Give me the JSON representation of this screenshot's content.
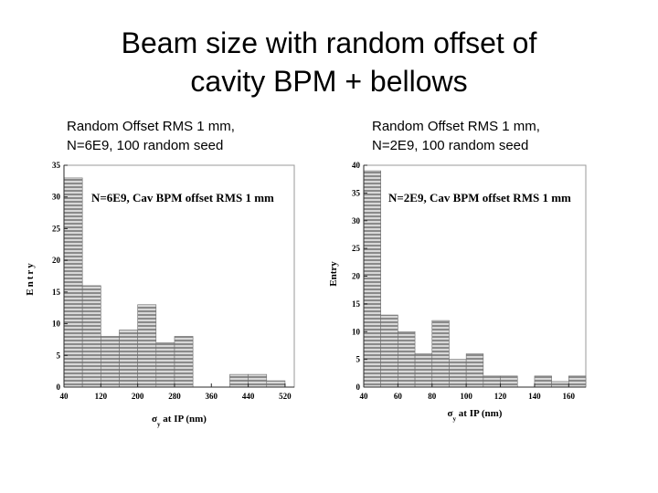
{
  "slide": {
    "title_line1": "Beam size with random offset of",
    "title_line2": "cavity BPM + bellows"
  },
  "captions": {
    "left_line1": "Random Offset RMS 1 mm,",
    "left_line2": "N=6E9, 100 random seed",
    "right_line1": "Random Offset RMS 1 mm,",
    "right_line2": "N=2E9, 100 random seed"
  },
  "colors": {
    "bar_stripe_dark": "#8a8a8a",
    "bar_stripe_light": "#d8d8d8",
    "frame": "#2a2a2a"
  },
  "chart_data": [
    {
      "type": "bar",
      "title": "N=6E9, Cav BPM offset RMS 1 mm",
      "xlabel": "σ",
      "xlabel_sub": "y",
      "xlabel_rest": " at IP (nm)",
      "ylabel": "Entry",
      "xlim": [
        40,
        540
      ],
      "ylim": [
        0,
        35
      ],
      "xticks": [
        40,
        120,
        200,
        280,
        360,
        440,
        520
      ],
      "yticks": [
        0,
        5,
        10,
        15,
        20,
        25,
        30,
        35
      ],
      "bin_edges": [
        40,
        80,
        120,
        160,
        200,
        240,
        280,
        320,
        360,
        400,
        440,
        480,
        520
      ],
      "values": [
        33,
        16,
        8,
        9,
        13,
        7,
        8,
        0,
        0,
        2,
        2,
        1
      ]
    },
    {
      "type": "bar",
      "title": "N=2E9, Cav BPM offset RMS 1 mm",
      "xlabel": "σ",
      "xlabel_sub": "y",
      "xlabel_rest": " at IP (nm)",
      "ylabel": "Entry",
      "xlim": [
        40,
        170
      ],
      "ylim": [
        0,
        40
      ],
      "xticks": [
        40,
        60,
        80,
        100,
        120,
        140,
        160
      ],
      "yticks": [
        0,
        5,
        10,
        15,
        20,
        25,
        30,
        35,
        40
      ],
      "bin_edges": [
        40,
        50,
        60,
        70,
        80,
        90,
        100,
        110,
        120,
        130,
        140,
        150,
        160,
        170
      ],
      "values": [
        39,
        13,
        10,
        6,
        12,
        5,
        6,
        2,
        2,
        0,
        2,
        1,
        2
      ]
    }
  ]
}
